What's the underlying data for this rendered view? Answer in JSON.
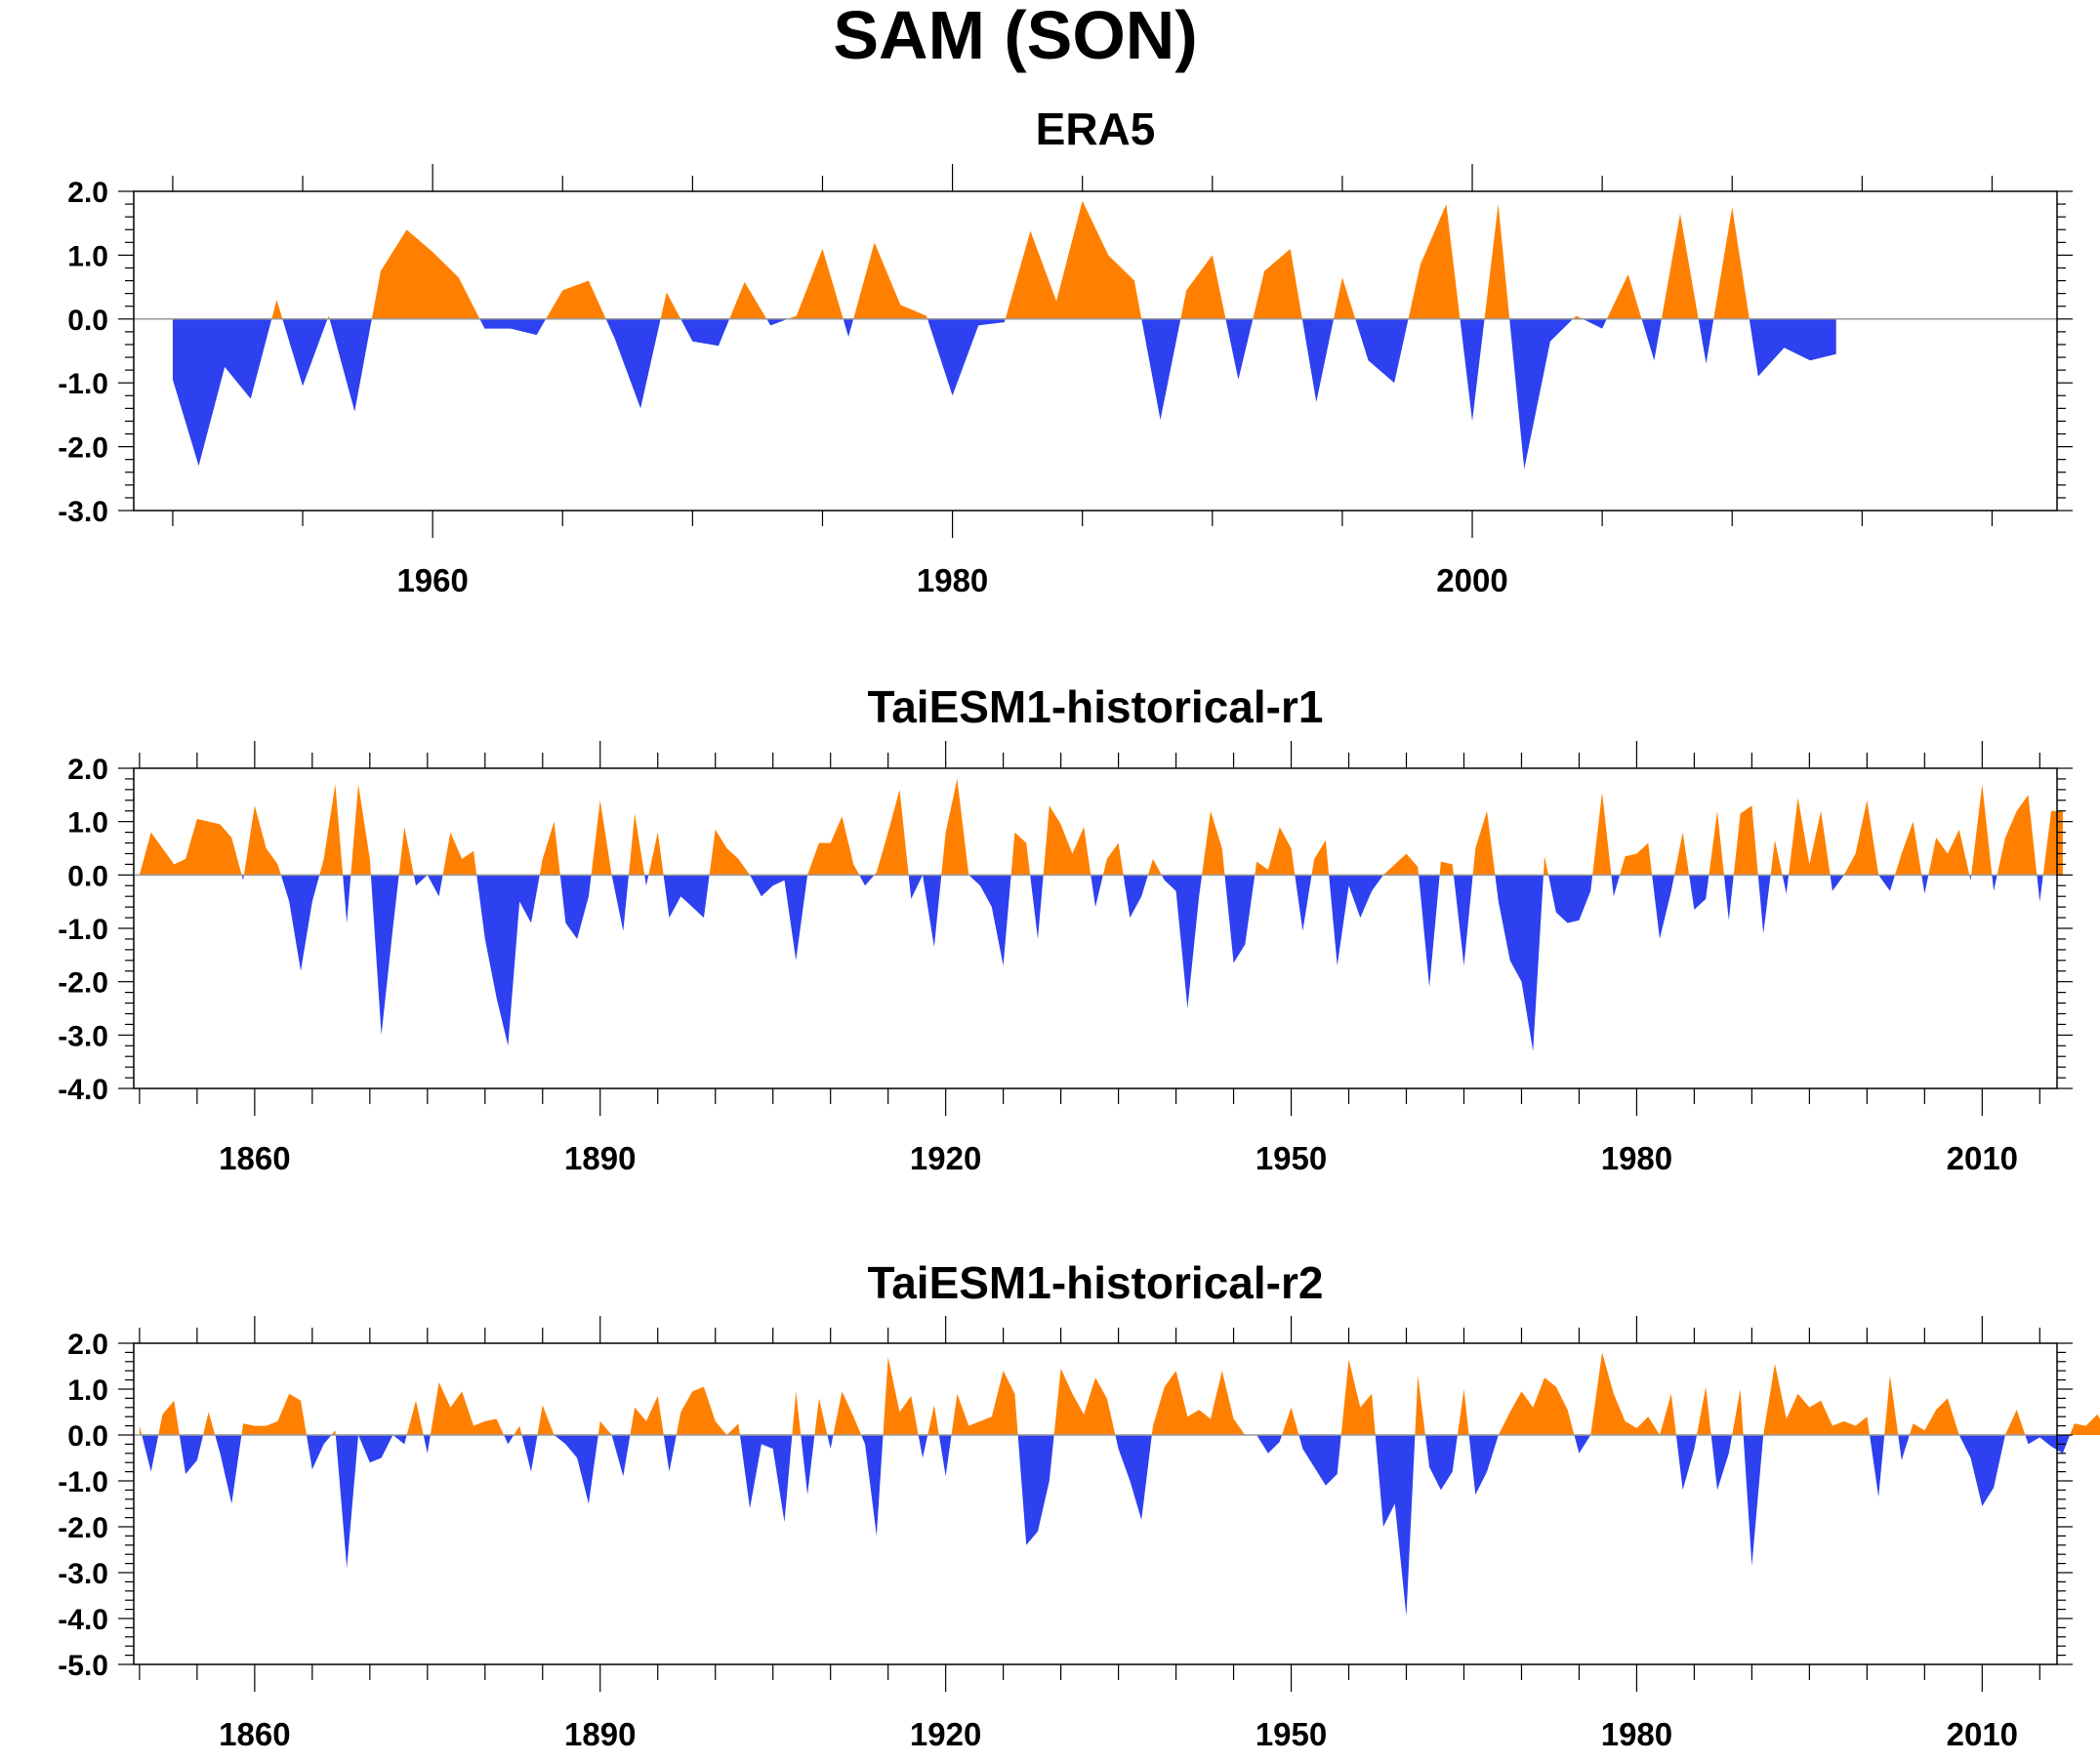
{
  "figure": {
    "title": "SAM (SON)"
  },
  "colors": {
    "positive": "#ff8000",
    "negative": "#2d41f0",
    "axis": "#000000",
    "zero_line": "#999999"
  },
  "chart_data": [
    {
      "type": "area",
      "title": "ERA5",
      "xlabel": "",
      "ylabel": "",
      "ylim": [
        -3.0,
        2.0
      ],
      "xlim": [
        1948.5,
        2022.5
      ],
      "y_ticks": [
        -3.0,
        -2.0,
        -1.0,
        0.0,
        1.0,
        2.0
      ],
      "y_tick_labels": [
        "-3.0",
        "-2.0",
        "-1.0",
        "0.0",
        "1.0",
        "2.0"
      ],
      "x_ticks": [
        1960,
        1980,
        2000
      ],
      "x_tick_labels": [
        "1960",
        "1980",
        "2000"
      ],
      "grid": false,
      "x_start": 1950,
      "values": [
        -0.95,
        -2.3,
        -0.75,
        -1.25,
        0.3,
        -1.05,
        0.05,
        -1.45,
        0.75,
        1.4,
        1.05,
        0.65,
        -0.15,
        -0.15,
        -0.25,
        0.45,
        0.6,
        -0.3,
        -1.4,
        0.42,
        -0.35,
        -0.42,
        0.58,
        -0.1,
        0.05,
        1.1,
        -0.28,
        1.2,
        0.22,
        0.05,
        -1.2,
        -0.1,
        -0.05,
        1.38,
        0.28,
        1.85,
        1.0,
        0.6,
        -1.58,
        0.45,
        1.0,
        -0.95,
        0.75,
        1.1,
        -1.3,
        0.65,
        -0.65,
        -1.0,
        0.85,
        1.8,
        -1.6,
        1.8,
        -2.35,
        -0.35,
        0.05,
        -0.15,
        0.7,
        -0.65,
        1.65,
        -0.7,
        1.75,
        -0.9,
        -0.45,
        -0.65,
        -0.55
      ]
    },
    {
      "type": "area",
      "title": "TaiESM1-historical-r1",
      "xlabel": "",
      "ylabel": "",
      "ylim": [
        -4.0,
        2.0
      ],
      "xlim": [
        1849.5,
        2016.5
      ],
      "y_ticks": [
        -4.0,
        -3.0,
        -2.0,
        -1.0,
        0.0,
        1.0,
        2.0
      ],
      "y_tick_labels": [
        "-4.0",
        "-3.0",
        "-2.0",
        "-1.0",
        "0.0",
        "1.0",
        "2.0"
      ],
      "x_ticks": [
        1860,
        1890,
        1920,
        1950,
        1980,
        2010
      ],
      "x_tick_labels": [
        "1860",
        "1890",
        "1920",
        "1950",
        "1980",
        "2010"
      ],
      "grid": false,
      "x_start": 1850,
      "values": [
        0.0,
        0.8,
        0.5,
        0.2,
        0.3,
        1.05,
        1.0,
        0.95,
        0.7,
        -0.1,
        1.3,
        0.5,
        0.2,
        -0.5,
        -1.8,
        -0.5,
        0.3,
        1.7,
        -0.9,
        1.7,
        0.3,
        -3.0,
        -1.0,
        0.9,
        -0.2,
        0.0,
        -0.4,
        0.8,
        0.3,
        0.45,
        -1.2,
        -2.3,
        -3.2,
        -0.5,
        -0.9,
        0.3,
        1.0,
        -0.9,
        -1.2,
        -0.4,
        1.4,
        0.0,
        -1.05,
        1.15,
        -0.2,
        0.8,
        -0.8,
        -0.4,
        -0.6,
        -0.8,
        0.85,
        0.5,
        0.3,
        0.0,
        -0.4,
        -0.2,
        -0.1,
        -1.6,
        0.0,
        0.6,
        0.6,
        1.1,
        0.2,
        -0.2,
        0.05,
        0.8,
        1.6,
        -0.45,
        0.0,
        -1.35,
        0.8,
        1.8,
        0.0,
        -0.2,
        -0.6,
        -1.7,
        0.8,
        0.6,
        -1.2,
        1.3,
        0.95,
        0.4,
        0.9,
        -0.6,
        0.3,
        0.6,
        -0.8,
        -0.4,
        0.3,
        -0.1,
        -0.3,
        -2.5,
        -0.4,
        1.2,
        0.5,
        -1.65,
        -1.3,
        0.25,
        0.1,
        0.9,
        0.5,
        -1.05,
        0.3,
        0.65,
        -1.7,
        -0.2,
        -0.8,
        -0.3,
        0.0,
        0.2,
        0.4,
        0.15,
        -2.1,
        0.25,
        0.2,
        -1.7,
        0.5,
        1.2,
        -0.5,
        -1.6,
        -2.0,
        -3.3,
        0.35,
        -0.7,
        -0.9,
        -0.85,
        -0.3,
        1.55,
        -0.4,
        0.35,
        0.4,
        0.6,
        -1.2,
        -0.3,
        0.8,
        -0.65,
        -0.45,
        1.2,
        -0.85,
        1.15,
        1.3,
        -1.1,
        0.65,
        -0.35,
        1.45,
        0.2,
        1.2,
        -0.3,
        0.0,
        0.4,
        1.4,
        0.0,
        -0.3,
        0.4,
        1.0,
        -0.35,
        0.7,
        0.4,
        0.85,
        -0.1,
        1.7,
        -0.3,
        0.7,
        1.2,
        1.5,
        -0.5,
        1.2,
        1.2
      ]
    },
    {
      "type": "area",
      "title": "TaiESM1-historical-r2",
      "xlabel": "",
      "ylabel": "",
      "ylim": [
        -5.0,
        2.0
      ],
      "xlim": [
        1849.5,
        2016.5
      ],
      "y_ticks": [
        -5.0,
        -4.0,
        -3.0,
        -2.0,
        -1.0,
        0.0,
        1.0,
        2.0
      ],
      "y_tick_labels": [
        "-5.0",
        "-4.0",
        "-3.0",
        "-2.0",
        "-1.0",
        "0.0",
        "1.0",
        "2.0"
      ],
      "x_ticks": [
        1860,
        1890,
        1920,
        1950,
        1980,
        2010
      ],
      "x_tick_labels": [
        "1860",
        "1890",
        "1920",
        "1950",
        "1980",
        "2010"
      ],
      "grid": false,
      "x_start": 1850,
      "values": [
        0.2,
        -0.8,
        0.45,
        0.75,
        -0.85,
        -0.55,
        0.5,
        -0.4,
        -1.5,
        0.25,
        0.2,
        0.2,
        0.3,
        0.9,
        0.75,
        -0.75,
        -0.2,
        0.1,
        -2.9,
        0.0,
        -0.6,
        -0.5,
        0.0,
        -0.2,
        0.75,
        -0.4,
        1.15,
        0.6,
        0.95,
        0.2,
        0.3,
        0.35,
        -0.2,
        0.2,
        -0.8,
        0.65,
        0.0,
        -0.2,
        -0.5,
        -1.5,
        0.3,
        0.0,
        -0.9,
        0.6,
        0.3,
        0.85,
        -0.8,
        0.5,
        0.95,
        1.05,
        0.3,
        0.0,
        0.25,
        -1.6,
        -0.2,
        -0.3,
        -1.9,
        0.95,
        -1.3,
        0.8,
        -0.3,
        0.95,
        0.4,
        -0.2,
        -2.2,
        1.7,
        0.5,
        0.85,
        -0.5,
        0.65,
        -0.9,
        0.9,
        0.2,
        0.3,
        0.4,
        1.4,
        0.9,
        -2.4,
        -2.1,
        -1.0,
        1.45,
        0.9,
        0.45,
        1.25,
        0.8,
        -0.3,
        -1.0,
        -1.85,
        0.2,
        1.05,
        1.4,
        0.4,
        0.55,
        0.35,
        1.4,
        0.35,
        0.0,
        0.0,
        -0.4,
        -0.15,
        0.6,
        -0.3,
        -0.7,
        -1.1,
        -0.85,
        1.65,
        0.6,
        0.9,
        -2.0,
        -1.5,
        -3.95,
        1.3,
        -0.7,
        -1.2,
        -0.8,
        1.0,
        -1.3,
        -0.8,
        0.0,
        0.5,
        0.95,
        0.6,
        1.25,
        1.05,
        0.55,
        -0.4,
        0.0,
        1.8,
        0.9,
        0.3,
        0.15,
        0.4,
        0.0,
        0.9,
        -1.2,
        -0.3,
        1.05,
        -1.2,
        -0.4,
        1.0,
        -2.85,
        0.0,
        1.55,
        0.35,
        0.9,
        0.6,
        0.75,
        0.2,
        0.3,
        0.2,
        0.4,
        -1.35,
        1.3,
        -0.55,
        0.25,
        0.1,
        0.55,
        0.8,
        0.0,
        -0.5,
        -1.55,
        -1.15,
        0.0,
        0.55,
        -0.2,
        -0.05,
        -0.25,
        -0.4,
        0.25,
        0.2,
        0.45,
        0.0
      ]
    }
  ]
}
